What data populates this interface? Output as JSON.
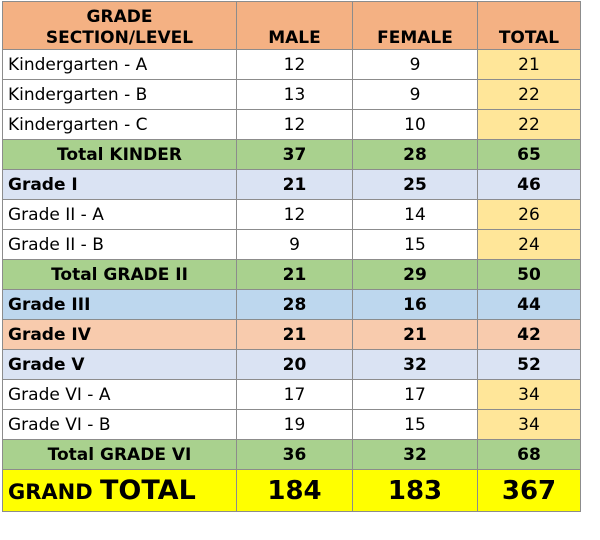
{
  "headers": {
    "section_line1": "GRADE",
    "section_line2": "SECTION/LEVEL",
    "male": "MALE",
    "female": "FEMALE",
    "total": "TOTAL"
  },
  "rows": [
    {
      "label": "Kindergarten - A",
      "male": "12",
      "female": "9",
      "total": "21"
    },
    {
      "label": "Kindergarten - B",
      "male": "13",
      "female": "9",
      "total": "22"
    },
    {
      "label": "Kindergarten - C",
      "male": "12",
      "female": "10",
      "total": "22"
    },
    {
      "label": "Total KINDER",
      "male": "37",
      "female": "28",
      "total": "65"
    },
    {
      "label": "Grade I",
      "male": "21",
      "female": "25",
      "total": "46"
    },
    {
      "label": "Grade II - A",
      "male": "12",
      "female": "14",
      "total": "26"
    },
    {
      "label": "Grade II - B",
      "male": "9",
      "female": "15",
      "total": "24"
    },
    {
      "label": "Total GRADE II",
      "male": "21",
      "female": "29",
      "total": "50"
    },
    {
      "label": "Grade III",
      "male": "28",
      "female": "16",
      "total": "44"
    },
    {
      "label": "Grade IV",
      "male": "21",
      "female": "21",
      "total": "42"
    },
    {
      "label": "Grade V",
      "male": "20",
      "female": "32",
      "total": "52"
    },
    {
      "label": "Grade VI - A",
      "male": "17",
      "female": "17",
      "total": "34"
    },
    {
      "label": "Grade VI - B",
      "male": "19",
      "female": "15",
      "total": "34"
    },
    {
      "label": "Total GRADE VI",
      "male": "36",
      "female": "32",
      "total": "68"
    }
  ],
  "grand_total": {
    "label_small": "GRAND",
    "label_big": "TOTAL",
    "male": "184",
    "female": "183",
    "total": "367"
  },
  "colors": {
    "header": "#f4b183",
    "subtotal": "#a9d18e",
    "light_blue": "#dae3f3",
    "blue": "#bdd7ee",
    "salmon": "#f8cbad",
    "total_cell": "#ffe699",
    "grand_total": "#ffff00"
  }
}
